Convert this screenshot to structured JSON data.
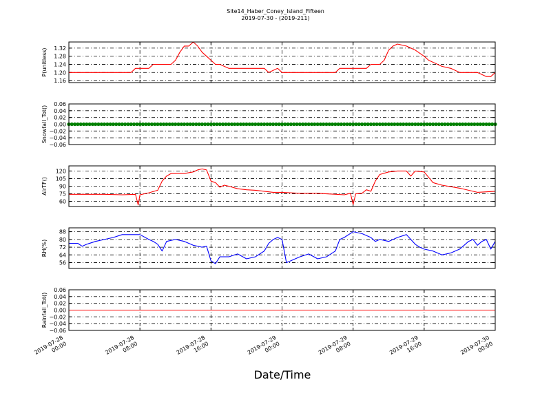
{
  "chart_data": {
    "type": "line",
    "title": "Site14_Haber_Coney_Island_Fifteen",
    "subtitle": "2019-07-30 - (2019-211)",
    "xlabel": "Date/Time",
    "x_ticks": [
      [
        "2019-07-28",
        "00:00"
      ],
      [
        "2019-07-28",
        "08:00"
      ],
      [
        "2019-07-28",
        "16:00"
      ],
      [
        "2019-07-29",
        "00:00"
      ],
      [
        "2019-07-29",
        "08:00"
      ],
      [
        "2019-07-29",
        "16:00"
      ],
      [
        "2019-07-30",
        "00:00"
      ]
    ],
    "xlim": [
      0,
      48
    ],
    "grid": true,
    "panels": [
      {
        "ylabel": "P(unitless)",
        "color": "#ff0000",
        "marker": "line",
        "ylim": [
          1.15,
          1.35
        ],
        "yticks": [
          "1.16",
          "1.20",
          "1.24",
          "1.28",
          "1.32"
        ],
        "ytick_values": [
          1.16,
          1.2,
          1.24,
          1.28,
          1.32
        ],
        "x": [
          0,
          2,
          3,
          5,
          6.5,
          7,
          7.5,
          8,
          9,
          9.5,
          11,
          11.5,
          12,
          12.5,
          13,
          13.5,
          14,
          14.5,
          15,
          15.5,
          16,
          16.5,
          17,
          18,
          18.5,
          20,
          21,
          22,
          22.5,
          23,
          23.5,
          24,
          25,
          27,
          28,
          30,
          30.5,
          31.5,
          32,
          33.5,
          34,
          34.5,
          35,
          35.5,
          36,
          36.5,
          37,
          38,
          39,
          40,
          40.5,
          42,
          43,
          44,
          45,
          46,
          47,
          47.5,
          48
        ],
        "y": [
          1.2,
          1.2,
          1.2,
          1.2,
          1.2,
          1.2,
          1.22,
          1.22,
          1.22,
          1.24,
          1.24,
          1.24,
          1.26,
          1.3,
          1.33,
          1.33,
          1.35,
          1.33,
          1.3,
          1.28,
          1.26,
          1.24,
          1.24,
          1.22,
          1.22,
          1.22,
          1.22,
          1.22,
          1.2,
          1.21,
          1.22,
          1.2,
          1.2,
          1.2,
          1.2,
          1.2,
          1.22,
          1.22,
          1.22,
          1.22,
          1.24,
          1.24,
          1.24,
          1.26,
          1.31,
          1.33,
          1.34,
          1.33,
          1.31,
          1.28,
          1.26,
          1.23,
          1.22,
          1.2,
          1.2,
          1.2,
          1.18,
          1.18,
          1.2
        ]
      },
      {
        "ylabel": "Snowfall_Tot()",
        "color": "#008000",
        "marker": "dots",
        "ylim": [
          -0.06,
          0.06
        ],
        "yticks": [
          "0.06",
          "0.04",
          "0.02",
          "0.00",
          "−0.02",
          "−0.04",
          "−0.06"
        ],
        "ytick_values": [
          0.06,
          0.04,
          0.02,
          0.0,
          -0.02,
          -0.04,
          -0.06
        ],
        "x": [
          0,
          48
        ],
        "y": [
          0,
          0
        ]
      },
      {
        "ylabel": "AirTF()",
        "color": "#ff0000",
        "marker": "line",
        "ylim": [
          50,
          130
        ],
        "yticks": [
          "120",
          "105",
          "90",
          "75",
          "60"
        ],
        "ytick_values": [
          120,
          105,
          90,
          75,
          60
        ],
        "x": [
          0,
          4,
          6,
          7.5,
          7.8,
          8,
          9,
          10,
          10.5,
          11,
          11.5,
          12,
          13,
          14,
          14.5,
          15,
          15.5,
          16,
          16.5,
          17,
          17.5,
          18,
          19,
          20,
          21,
          22,
          23,
          24,
          26,
          28,
          29,
          31,
          31.7,
          32,
          32.3,
          33,
          33.5,
          34,
          34.5,
          35,
          36,
          37,
          38,
          38.5,
          39,
          40,
          41,
          42,
          44,
          46,
          48
        ],
        "y": [
          74,
          74,
          73,
          74,
          53,
          73,
          77,
          82,
          100,
          110,
          115,
          115,
          115,
          118,
          122,
          124,
          122,
          100,
          97,
          88,
          92,
          90,
          85,
          83,
          82,
          80,
          78,
          78,
          76,
          76,
          75,
          73,
          76,
          54,
          75,
          76,
          83,
          80,
          100,
          113,
          118,
          120,
          120,
          110,
          120,
          118,
          97,
          92,
          86,
          78,
          80
        ]
      },
      {
        "ylabel": "RH(%)",
        "color": "#0000ff",
        "marker": "line",
        "ylim": [
          50,
          92
        ],
        "yticks": [
          "88",
          "80",
          "72",
          "64",
          "56"
        ],
        "ytick_values": [
          88,
          80,
          72,
          64,
          56
        ],
        "x": [
          0,
          1,
          1.5,
          2,
          3,
          4,
          5,
          6,
          7,
          8,
          9,
          9.5,
          10,
          10.5,
          11,
          12,
          13,
          14,
          15,
          15.5,
          16,
          16.5,
          17,
          18,
          19,
          20,
          21,
          22,
          22.5,
          23,
          23.5,
          24,
          24.5,
          25,
          26,
          27,
          28,
          29,
          30,
          30.5,
          31,
          32,
          33,
          34,
          34.5,
          35,
          36,
          37,
          38,
          39,
          39.5,
          40,
          41,
          42,
          43,
          44,
          44.5,
          45,
          45.5,
          46,
          46.5,
          47,
          47.5,
          48
        ],
        "y": [
          76,
          76,
          73,
          75,
          78,
          80,
          82,
          85,
          85,
          85,
          80,
          78,
          75,
          68,
          78,
          80,
          78,
          74,
          72,
          73,
          58,
          55,
          62,
          62,
          65,
          60,
          62,
          68,
          76,
          80,
          82,
          80,
          56,
          58,
          62,
          65,
          60,
          62,
          68,
          80,
          82,
          88,
          86,
          82,
          78,
          80,
          78,
          82,
          85,
          75,
          72,
          70,
          68,
          64,
          66,
          70,
          74,
          78,
          80,
          74,
          78,
          80,
          70,
          78
        ]
      },
      {
        "ylabel": "Rainfall_Tot()",
        "color": "#ff0000",
        "marker": "line",
        "ylim": [
          -0.06,
          0.06
        ],
        "yticks": [
          "0.06",
          "0.04",
          "0.02",
          "0.00",
          "−0.02",
          "−0.04",
          "−0.06"
        ],
        "ytick_values": [
          0.06,
          0.04,
          0.02,
          0.0,
          -0.02,
          -0.04,
          -0.06
        ],
        "x": [
          0,
          48
        ],
        "y": [
          0,
          0
        ]
      }
    ]
  }
}
